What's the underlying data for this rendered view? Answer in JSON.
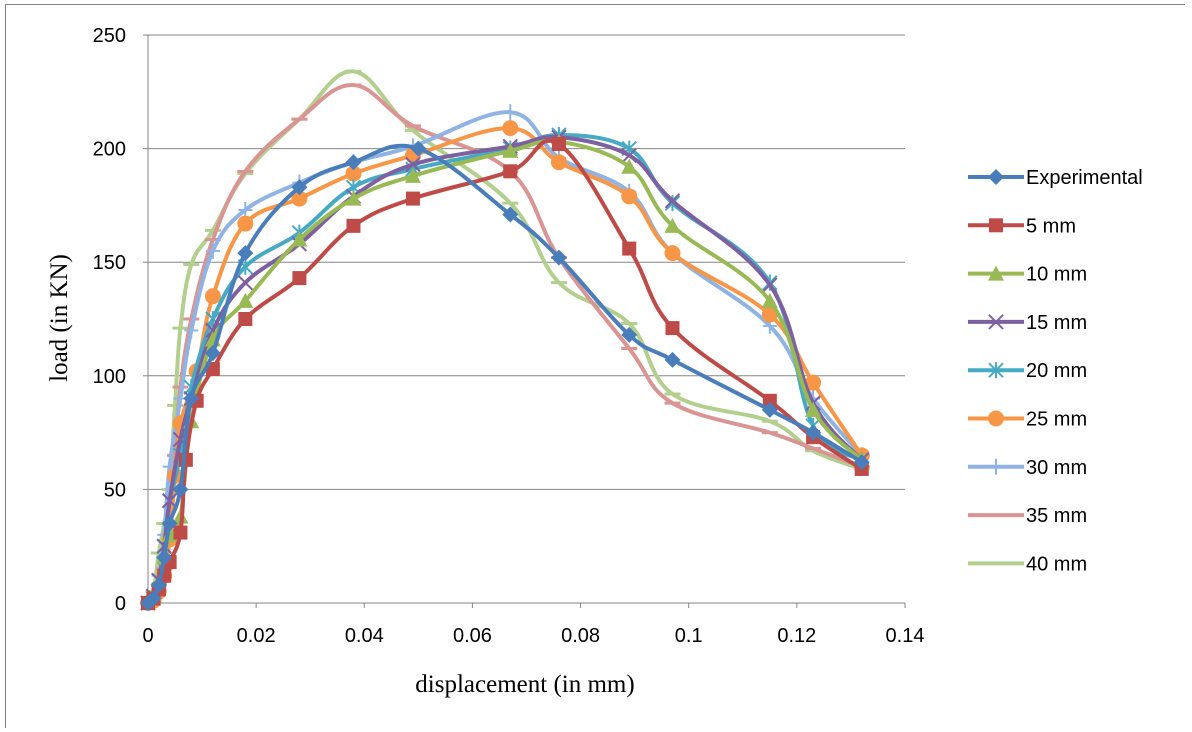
{
  "chart_data": {
    "type": "line",
    "title": "",
    "xlabel": "displacement (in mm)",
    "ylabel": "load (in KN)",
    "xlim": [
      0,
      0.14
    ],
    "ylim": [
      0,
      250
    ],
    "xticks": [
      0,
      0.02,
      0.04,
      0.06,
      0.08,
      0.1,
      0.12,
      0.14
    ],
    "xtick_labels": [
      "0",
      "0.02",
      "0.04",
      "0.06",
      "0.08",
      "0.1",
      "0.12",
      "0.14"
    ],
    "yticks": [
      0,
      50,
      100,
      150,
      200,
      250
    ],
    "ytick_labels": [
      "0",
      "50",
      "100",
      "150",
      "200",
      "250"
    ],
    "grid": "horizontal",
    "legend_position": "right",
    "series": [
      {
        "name": "Experimental",
        "color": "#4a7ebb",
        "marker": "diamond",
        "x": [
          0,
          0.001,
          0.002,
          0.003,
          0.004,
          0.006,
          0.008,
          0.012,
          0.018,
          0.028,
          0.038,
          0.05,
          0.067,
          0.076,
          0.089,
          0.097,
          0.115,
          0.123,
          0.132
        ],
        "y": [
          0,
          2,
          8,
          20,
          35,
          50,
          90,
          110,
          154,
          183,
          194,
          200,
          171,
          152,
          118,
          107,
          85,
          75,
          62
        ]
      },
      {
        "name": "5 mm",
        "color": "#be4b48",
        "marker": "square",
        "x": [
          0,
          0.001,
          0.002,
          0.003,
          0.004,
          0.006,
          0.007,
          0.009,
          0.012,
          0.018,
          0.028,
          0.038,
          0.049,
          0.067,
          0.076,
          0.089,
          0.097,
          0.115,
          0.123,
          0.132
        ],
        "y": [
          0,
          2,
          6,
          12,
          18,
          31,
          63,
          89,
          103,
          125,
          143,
          166,
          178,
          190,
          202,
          156,
          121,
          89,
          73,
          59
        ]
      },
      {
        "name": "10 mm",
        "color": "#98b954",
        "marker": "triangle",
        "x": [
          0,
          0.001,
          0.002,
          0.003,
          0.004,
          0.006,
          0.008,
          0.012,
          0.018,
          0.028,
          0.038,
          0.049,
          0.067,
          0.076,
          0.089,
          0.097,
          0.115,
          0.123,
          0.132
        ],
        "y": [
          0,
          2,
          8,
          20,
          30,
          38,
          80,
          116,
          133,
          160,
          178,
          188,
          199,
          203,
          192,
          166,
          133,
          85,
          63
        ]
      },
      {
        "name": "15 mm",
        "color": "#7d60a0",
        "marker": "x",
        "x": [
          0,
          0.001,
          0.002,
          0.003,
          0.004,
          0.006,
          0.008,
          0.012,
          0.018,
          0.028,
          0.038,
          0.049,
          0.067,
          0.076,
          0.089,
          0.097,
          0.115,
          0.123,
          0.132
        ],
        "y": [
          0,
          3,
          10,
          25,
          45,
          72,
          90,
          120,
          141,
          158,
          179,
          193,
          201,
          205,
          197,
          177,
          140,
          88,
          63
        ]
      },
      {
        "name": "20 mm",
        "color": "#46aac5",
        "marker": "asterisk",
        "x": [
          0,
          0.001,
          0.002,
          0.003,
          0.004,
          0.006,
          0.008,
          0.012,
          0.018,
          0.028,
          0.038,
          0.049,
          0.067,
          0.076,
          0.089,
          0.097,
          0.115,
          0.123,
          0.132
        ],
        "y": [
          0,
          3,
          10,
          25,
          45,
          65,
          95,
          125,
          148,
          163,
          183,
          191,
          200,
          206,
          200,
          176,
          141,
          78,
          63
        ]
      },
      {
        "name": "25 mm",
        "color": "#f79646",
        "marker": "circle",
        "x": [
          0,
          0.001,
          0.002,
          0.003,
          0.004,
          0.005,
          0.006,
          0.009,
          0.012,
          0.018,
          0.028,
          0.038,
          0.049,
          0.067,
          0.076,
          0.089,
          0.097,
          0.115,
          0.123,
          0.132
        ],
        "y": [
          0,
          1,
          5,
          12,
          28,
          56,
          79,
          102,
          135,
          167,
          178,
          189,
          197,
          209,
          194,
          179,
          154,
          127,
          97,
          65
        ]
      },
      {
        "name": "30 mm",
        "color": "#8fb4e3",
        "marker": "plus",
        "x": [
          0,
          0.001,
          0.002,
          0.003,
          0.004,
          0.006,
          0.008,
          0.012,
          0.018,
          0.028,
          0.038,
          0.049,
          0.067,
          0.076,
          0.089,
          0.097,
          0.115,
          0.123,
          0.132
        ],
        "y": [
          0,
          3,
          12,
          30,
          60,
          90,
          120,
          155,
          173,
          185,
          194,
          201,
          216,
          196,
          181,
          154,
          122,
          90,
          65
        ]
      },
      {
        "name": "35 mm",
        "color": "#d99594",
        "marker": "dash",
        "x": [
          0,
          0.001,
          0.002,
          0.003,
          0.004,
          0.005,
          0.006,
          0.008,
          0.012,
          0.018,
          0.028,
          0.038,
          0.049,
          0.067,
          0.076,
          0.089,
          0.097,
          0.115,
          0.123,
          0.132
        ],
        "y": [
          0,
          2,
          8,
          15,
          30,
          65,
          95,
          125,
          160,
          190,
          213,
          228,
          210,
          190,
          152,
          112,
          88,
          75,
          68,
          60
        ]
      },
      {
        "name": "40 mm",
        "color": "#b3cf8e",
        "marker": "dash",
        "x": [
          0,
          0.001,
          0.002,
          0.003,
          0.004,
          0.005,
          0.006,
          0.008,
          0.012,
          0.018,
          0.028,
          0.038,
          0.049,
          0.067,
          0.076,
          0.089,
          0.097,
          0.115,
          0.123,
          0.132
        ],
        "y": [
          0,
          5,
          22,
          35,
          50,
          87,
          121,
          149,
          164,
          189,
          213,
          234,
          208,
          176,
          141,
          123,
          92,
          80,
          67,
          59
        ]
      }
    ]
  }
}
